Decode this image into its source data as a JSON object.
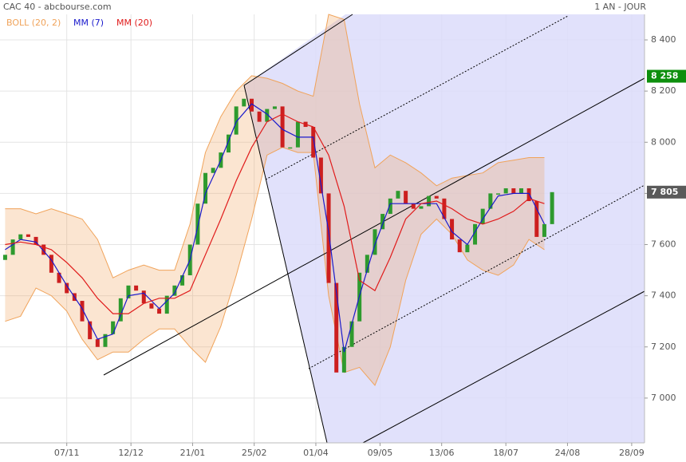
{
  "chart_data": {
    "type": "candlestick",
    "title": "CAC 40 - abcbourse.com",
    "period": "1 AN - JOUR",
    "up_color": "#2e9a2e",
    "down_color": "#cc1f1f",
    "grid": true,
    "xlim": [
      -2,
      249
    ],
    "xticks": [
      {
        "value": 24,
        "label": "07/11"
      },
      {
        "value": 49,
        "label": "12/12"
      },
      {
        "value": 73,
        "label": "21/01"
      },
      {
        "value": 97,
        "label": "25/02"
      },
      {
        "value": 121,
        "label": "01/04"
      },
      {
        "value": 146,
        "label": "09/05"
      },
      {
        "value": 170,
        "label": "13/06"
      },
      {
        "value": 195,
        "label": "18/07"
      },
      {
        "value": 219,
        "label": "24/08"
      },
      {
        "value": 244,
        "label": "28/09"
      }
    ],
    "ylim": [
      6825,
      8556
    ],
    "yticks": [
      {
        "value": 7000,
        "label": "7 000"
      },
      {
        "value": 7200,
        "label": "7 200"
      },
      {
        "value": 7400,
        "label": "7 400"
      },
      {
        "value": 7600,
        "label": "7 600"
      },
      {
        "value": 7800,
        "label": "7 800"
      },
      {
        "value": 8000,
        "label": "8 000"
      },
      {
        "value": 8200,
        "label": "8 200"
      },
      {
        "value": 8400,
        "label": "8 400"
      }
    ],
    "x": [
      0,
      3,
      6,
      9,
      12,
      15,
      18,
      21,
      24,
      27,
      30,
      33,
      36,
      39,
      42,
      45,
      48,
      51,
      54,
      57,
      60,
      63,
      66,
      69,
      72,
      75,
      78,
      81,
      84,
      87,
      90,
      93,
      96,
      99,
      102,
      105,
      108,
      111,
      114,
      117,
      120,
      123,
      126,
      129,
      132,
      135,
      138,
      141,
      144,
      147,
      150,
      153,
      156,
      159,
      162,
      165,
      168,
      171,
      174,
      177,
      180,
      183,
      186,
      189,
      192,
      195,
      198,
      201,
      204,
      207,
      210,
      213
    ],
    "open": [
      7540,
      7560,
      7620,
      7640,
      7630,
      7600,
      7560,
      7490,
      7450,
      7410,
      7380,
      7300,
      7230,
      7200,
      7250,
      7300,
      7390,
      7440,
      7420,
      7370,
      7350,
      7330,
      7400,
      7440,
      7480,
      7600,
      7760,
      7880,
      7900,
      7960,
      8030,
      8140,
      8170,
      8120,
      8080,
      8130,
      8140,
      7980,
      7980,
      8080,
      8060,
      7940,
      7800,
      7450,
      7100,
      7200,
      7300,
      7490,
      7560,
      7660,
      7720,
      7780,
      7810,
      7760,
      7740,
      7750,
      7790,
      7780,
      7700,
      7620,
      7570,
      7600,
      7680,
      7740,
      7800,
      7800,
      7820,
      7800,
      7820,
      7770,
      7630,
      7680
    ],
    "close": [
      7560,
      7620,
      7640,
      7630,
      7600,
      7560,
      7490,
      7450,
      7410,
      7380,
      7300,
      7230,
      7200,
      7250,
      7300,
      7390,
      7440,
      7420,
      7370,
      7350,
      7330,
      7400,
      7440,
      7480,
      7600,
      7760,
      7880,
      7900,
      7960,
      8030,
      8140,
      8170,
      8120,
      8080,
      8130,
      8140,
      7980,
      7980,
      8080,
      8060,
      7940,
      7800,
      7450,
      7100,
      7200,
      7300,
      7490,
      7560,
      7660,
      7720,
      7780,
      7810,
      7760,
      7740,
      7750,
      7790,
      7780,
      7700,
      7620,
      7570,
      7600,
      7680,
      7740,
      7800,
      7800,
      7820,
      7800,
      7820,
      7770,
      7630,
      7680,
      7805
    ],
    "series": [
      {
        "name": "BOLL (20, 2)",
        "color": "#f0a35a",
        "x": [
          0,
          6,
          12,
          18,
          24,
          30,
          36,
          42,
          48,
          54,
          60,
          66,
          72,
          78,
          84,
          90,
          96,
          102,
          108,
          114,
          120,
          126,
          132,
          138,
          144,
          150,
          156,
          162,
          168,
          174,
          180,
          186,
          192,
          198,
          204,
          210
        ],
        "upper": [
          7740,
          7740,
          7720,
          7740,
          7720,
          7700,
          7620,
          7470,
          7500,
          7520,
          7500,
          7500,
          7680,
          7960,
          8100,
          8200,
          8260,
          8250,
          8230,
          8200,
          8180,
          8500,
          8480,
          8150,
          7900,
          7950,
          7920,
          7880,
          7830,
          7860,
          7870,
          7880,
          7920,
          7930,
          7940,
          7940
        ],
        "lower": [
          7300,
          7320,
          7430,
          7400,
          7340,
          7230,
          7150,
          7180,
          7180,
          7230,
          7270,
          7270,
          7200,
          7140,
          7280,
          7480,
          7700,
          7950,
          7980,
          7960,
          7960,
          7400,
          7100,
          7120,
          7050,
          7200,
          7460,
          7640,
          7700,
          7640,
          7540,
          7500,
          7480,
          7520,
          7620,
          7580
        ]
      },
      {
        "name": "MM (7)",
        "color": "#1a1acc",
        "x": [
          0,
          6,
          12,
          18,
          24,
          30,
          36,
          42,
          48,
          54,
          60,
          66,
          72,
          78,
          84,
          90,
          96,
          102,
          108,
          114,
          120,
          126,
          132,
          138,
          144,
          150,
          156,
          162,
          168,
          174,
          180,
          186,
          192,
          198,
          204,
          210
        ],
        "values": [
          7580,
          7620,
          7610,
          7540,
          7440,
          7350,
          7230,
          7250,
          7400,
          7410,
          7350,
          7410,
          7540,
          7800,
          7930,
          8080,
          8150,
          8110,
          8050,
          8020,
          8020,
          7650,
          7180,
          7400,
          7600,
          7760,
          7760,
          7760,
          7760,
          7650,
          7600,
          7700,
          7790,
          7800,
          7800,
          7680
        ]
      },
      {
        "name": "MM (20)",
        "color": "#e01b1b",
        "x": [
          0,
          6,
          12,
          18,
          24,
          30,
          36,
          42,
          48,
          54,
          60,
          66,
          72,
          78,
          84,
          90,
          96,
          102,
          108,
          114,
          120,
          126,
          132,
          138,
          144,
          150,
          156,
          162,
          168,
          174,
          180,
          186,
          192,
          198,
          204,
          210
        ],
        "values": [
          7600,
          7610,
          7600,
          7580,
          7530,
          7470,
          7390,
          7330,
          7330,
          7370,
          7390,
          7390,
          7420,
          7560,
          7700,
          7850,
          7980,
          8080,
          8110,
          8080,
          8060,
          7950,
          7750,
          7460,
          7420,
          7550,
          7700,
          7760,
          7770,
          7740,
          7700,
          7680,
          7700,
          7730,
          7780,
          7760
        ]
      }
    ],
    "price_markers": [
      {
        "value": 8258,
        "label": "8 258",
        "color": "#0d8f0d"
      },
      {
        "value": 7805,
        "label": "7 805",
        "color": "#5a5a5a"
      }
    ]
  }
}
